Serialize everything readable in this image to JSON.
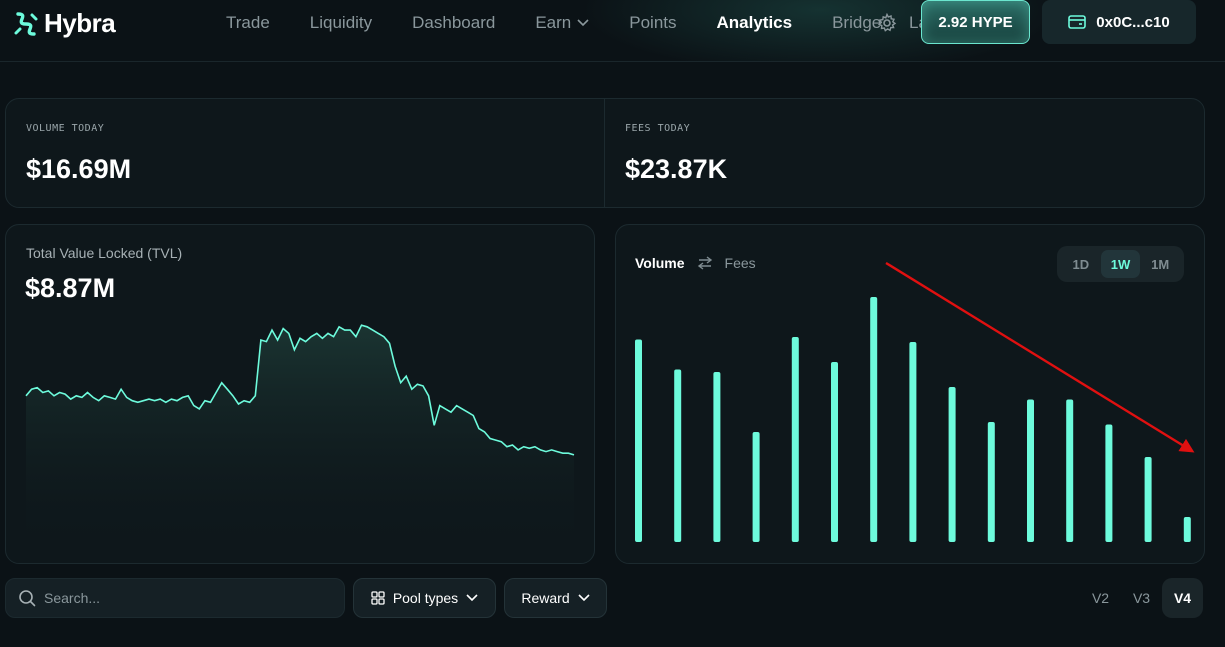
{
  "brand": {
    "name": "Hybra",
    "accent": "#6dfbdc"
  },
  "nav": {
    "items": [
      {
        "label": "Trade",
        "active": false
      },
      {
        "label": "Liquidity",
        "active": false
      },
      {
        "label": "Dashboard",
        "active": false
      },
      {
        "label": "Earn",
        "active": false,
        "has_dropdown": true
      },
      {
        "label": "Points",
        "active": false
      },
      {
        "label": "Analytics",
        "active": true
      },
      {
        "label": "Bridge",
        "active": false
      }
    ],
    "settings_icon": "gear-icon",
    "truncated_item": "La"
  },
  "account": {
    "balance_label": "2.92 HYPE",
    "wallet_label": "0x0C...c10",
    "wallet_icon": "wallet-icon"
  },
  "stats": {
    "volume": {
      "label": "VOLUME TODAY",
      "value": "$16.69M"
    },
    "fees": {
      "label": "FEES TODAY",
      "value": "$23.87K"
    }
  },
  "tvl": {
    "label": "Total Value Locked (TVL)",
    "value": "$8.87M"
  },
  "volume_panel": {
    "toggle": {
      "active": "Volume",
      "inactive": "Fees",
      "swap_icon": "swap-arrows-icon"
    },
    "ranges": [
      {
        "label": "1D",
        "active": false
      },
      {
        "label": "1W",
        "active": true
      },
      {
        "label": "1M",
        "active": false
      }
    ],
    "annotation": {
      "type": "arrow",
      "color": "#e01010",
      "meaning": "downward trend"
    }
  },
  "chart_data": [
    {
      "type": "area",
      "title": "Total Value Locked (TVL)",
      "color": "#6dfbdc",
      "grid": false,
      "values": [
        7.2,
        7.4,
        7.45,
        7.3,
        7.35,
        7.2,
        7.3,
        7.25,
        7.1,
        7.2,
        7.15,
        7.3,
        7.15,
        7.05,
        7.2,
        7.15,
        7.1,
        7.4,
        7.15,
        7.05,
        7.0,
        7.05,
        7.1,
        7.05,
        7.1,
        7.0,
        7.1,
        7.05,
        7.15,
        7.2,
        6.9,
        6.8,
        7.05,
        7.0,
        7.3,
        7.6,
        7.4,
        7.2,
        6.95,
        7.05,
        7.0,
        7.2,
        8.9,
        8.85,
        9.2,
        8.9,
        9.25,
        9.1,
        8.6,
        8.95,
        8.85,
        9.0,
        9.1,
        8.95,
        9.1,
        9.0,
        9.3,
        9.2,
        9.2,
        9.0,
        9.35,
        9.3,
        9.2,
        9.1,
        9.0,
        8.8,
        8.1,
        7.6,
        7.8,
        7.4,
        7.55,
        7.5,
        7.2,
        6.3,
        6.9,
        6.8,
        6.7,
        6.9,
        6.8,
        6.7,
        6.6,
        6.2,
        6.1,
        5.9,
        5.85,
        5.8,
        5.65,
        5.7,
        5.55,
        5.65,
        5.6,
        5.65,
        5.55,
        5.5,
        5.55,
        5.5,
        5.45,
        5.45,
        5.4
      ]
    },
    {
      "type": "bar",
      "title": "Volume",
      "period": "1W",
      "color": "#6dfbdc",
      "grid": false,
      "values": [
        81,
        69,
        68,
        44,
        82,
        72,
        98,
        80,
        62,
        48,
        57,
        57,
        47,
        34,
        10
      ]
    }
  ]
}
